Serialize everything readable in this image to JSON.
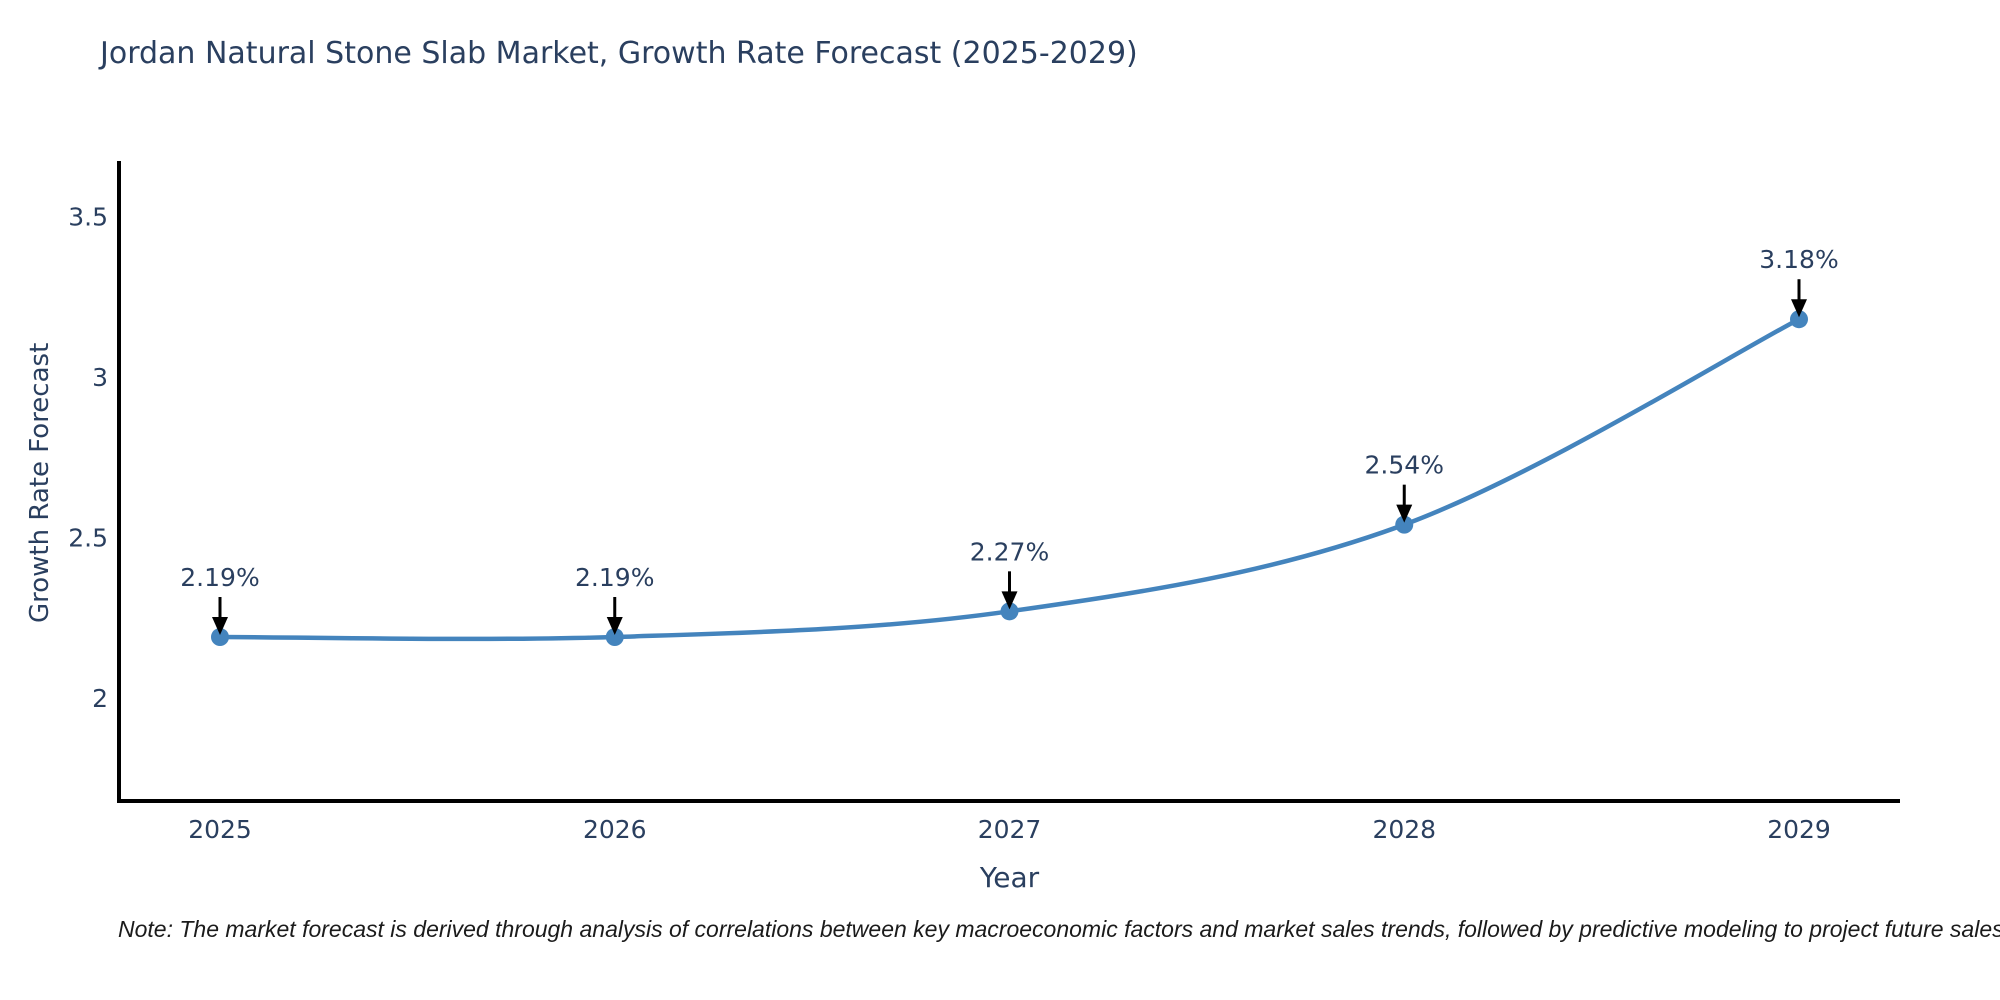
{
  "title": "Jordan Natural Stone Slab Market, Growth Rate Forecast (2025-2029)",
  "note": "Note: The market forecast is derived through analysis of correlations between key macroeconomic factors and market sales trends, followed by predictive modeling to project future sales",
  "chart_data": {
    "type": "line",
    "title": "Jordan Natural Stone Slab Market, Growth Rate Forecast (2025-2029)",
    "x": [
      2025,
      2026,
      2027,
      2028,
      2029
    ],
    "series": [
      {
        "name": "Growth Rate Forecast",
        "values": [
          2.19,
          2.19,
          2.27,
          2.54,
          3.18
        ]
      }
    ],
    "point_labels": [
      "2.19%",
      "2.19%",
      "2.27%",
      "2.54%",
      "3.18%"
    ],
    "xlabel": "Year",
    "ylabel": "Growth Rate Forecast",
    "y_ticks": [
      2,
      2.5,
      3,
      3.5
    ],
    "ylim": [
      1.68,
      3.67
    ],
    "line_shape": "spline",
    "grid": false,
    "legend": "none",
    "colors": {
      "line": "#4484bd",
      "marker": "#4484bd",
      "axis": "#000000",
      "text": "#2a3f5f",
      "arrow": "#000000"
    }
  }
}
